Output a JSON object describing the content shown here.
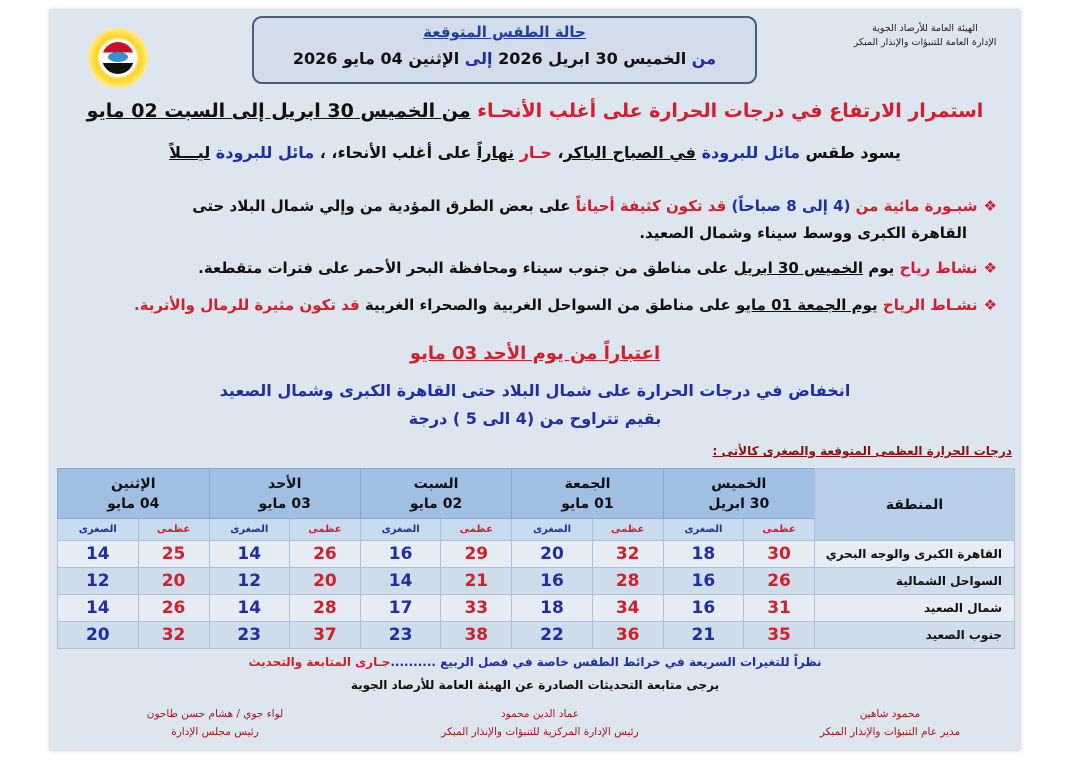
{
  "header": {
    "org_line1": "الهيئة العامة للأرصاد الجوية",
    "org_line2": "الإدارة العامة للتنبؤات والإنذار المبكر",
    "title": "حالة الطقس المتوقعة",
    "period": [
      {
        "text": "من ",
        "color": "#1f2fa0"
      },
      {
        "text": "الخميس 30 ابريل 2026 ",
        "color": "#111"
      },
      {
        "text": "إلى ",
        "color": "#1f2fa0"
      },
      {
        "text": "الإثنين 04 مايو 2026",
        "color": "#111"
      }
    ]
  },
  "headline": [
    {
      "text": "استمرار الارتفاع في درجات الحرارة على أغلب الأنحـاء ",
      "color": "#d21f2b"
    },
    {
      "text": "من الخميس 30 ابريل إلى السبت 02 مايو",
      "color": "#111",
      "u": true
    }
  ],
  "summary": [
    {
      "text": "يسود طقس  ",
      "color": "#111"
    },
    {
      "text": "مائل للبرودة ",
      "color": "#1f2fa0"
    },
    {
      "text": "في الصباح الباكر",
      "color": "#111",
      "u": true
    },
    {
      "text": "، ",
      "color": "#111"
    },
    {
      "text": "حـار ",
      "color": "#d21f2b"
    },
    {
      "text": "نهاراً",
      "color": "#111",
      "u": true
    },
    {
      "text": " على أغلب الأنحاء، ، ",
      "color": "#111"
    },
    {
      "text": "مائل للبرودة ",
      "color": "#1f2fa0"
    },
    {
      "text": "ليـــلاً",
      "color": "#111",
      "u": true
    }
  ],
  "bullets": [
    [
      {
        "text": "شبـورة مائية من ",
        "color": "#d21f2b"
      },
      {
        "text": "(4 إلى 8 صباحاً) ",
        "color": "#1f2fa0"
      },
      {
        "text": "قد تكون كثيفة أحياناً ",
        "color": "#d21f2b"
      },
      {
        "text": "على بعض الطرق المؤدية من وإلي شمال البلاد حتى",
        "color": "#111"
      }
    ],
    [
      {
        "text": "القاهرة الكبرى ووسط سيناء وشمال الصعيد.",
        "color": "#111"
      }
    ],
    [
      {
        "text": "نشاط رياح ",
        "color": "#d21f2b"
      },
      {
        "text": "يوم ",
        "color": "#111"
      },
      {
        "text": "الخميس 30 ابريل",
        "color": "#111",
        "u": true
      },
      {
        "text": " على مناطق من جنوب سيناء ومحافظة البحر الأحمر على فترات متقطعة.",
        "color": "#111"
      }
    ],
    [
      {
        "text": "نشـاط الرياح ",
        "color": "#d21f2b"
      },
      {
        "text": "يوم الجمعة 01 مايو",
        "color": "#111",
        "u": true
      },
      {
        "text": " على مناطق من السواحل الغربية والصحراء الغربية  ",
        "color": "#111"
      },
      {
        "text": "قد تكون مثيرة للرمال والأتربة.",
        "color": "#d21f2b"
      }
    ]
  ],
  "section": {
    "title": "اعتباراً من يوم الأحد 03 مايو",
    "line1": "انخفاض في درجات الحرارة على شمال البلاد حتى القاهرة الكبرى وشمال الصعيد",
    "line2": "بقيم تتراوح من (4 الى 5 ) درجة",
    "table_label": "درجات الحرارة العظمى المتوقعة والصغرى كالأتى :"
  },
  "table": {
    "region_header": "المنطقة",
    "max_label": "عظمى",
    "min_label": "الصغرى",
    "days": [
      {
        "day": "الخميس",
        "date": "30 ابريل"
      },
      {
        "day": "الجمعة",
        "date": "01 مايو"
      },
      {
        "day": "السبت",
        "date": "02 مايو"
      },
      {
        "day": "الأحد",
        "date": "03 مايو"
      },
      {
        "day": "الإثنين",
        "date": "04 مايو"
      }
    ],
    "rows": [
      {
        "region": "القاهرة الكبرى والوجه البحري",
        "values": [
          [
            "30",
            "18"
          ],
          [
            "32",
            "20"
          ],
          [
            "29",
            "16"
          ],
          [
            "26",
            "14"
          ],
          [
            "25",
            "14"
          ]
        ]
      },
      {
        "region": "السواحل الشمالية",
        "values": [
          [
            "26",
            "16"
          ],
          [
            "28",
            "16"
          ],
          [
            "21",
            "14"
          ],
          [
            "20",
            "12"
          ],
          [
            "20",
            "12"
          ]
        ]
      },
      {
        "region": "شمال الصعيد",
        "values": [
          [
            "31",
            "16"
          ],
          [
            "34",
            "18"
          ],
          [
            "33",
            "17"
          ],
          [
            "28",
            "14"
          ],
          [
            "26",
            "14"
          ]
        ]
      },
      {
        "region": "جنوب الصعيد",
        "values": [
          [
            "35",
            "21"
          ],
          [
            "36",
            "22"
          ],
          [
            "38",
            "23"
          ],
          [
            "37",
            "23"
          ],
          [
            "32",
            "20"
          ]
        ]
      }
    ]
  },
  "footer": {
    "note": [
      {
        "text": "نظراً للتغيرات السريعة في خرائط الطقس خاصة في فصل الربيع ..........",
        "color": "#1f2fa0"
      },
      {
        "text": "جـارى المتابعة والتحديث",
        "color": "#d21f2b"
      }
    ],
    "follow": "يرجى متابعة التحديثات الصادرة عن الهيئة العامة للأرصاد الجوية",
    "signatures": [
      {
        "name": "محمود شاهين",
        "title": "مدير عام التنبؤات والإنذار المبكر"
      },
      {
        "name": "عماد الدين محمود",
        "title": "رئيس الإدارة المركزية للتنبؤات والإنذار المبكر"
      },
      {
        "name": "لواء جوي / هشام حسن طاحون",
        "title": "رئيس مجلس الإدارة"
      }
    ]
  },
  "colors": {
    "max": "#d21f2b",
    "min": "#1f2fa0",
    "panel": "#dde5ef",
    "header": "#9fbfe3"
  }
}
